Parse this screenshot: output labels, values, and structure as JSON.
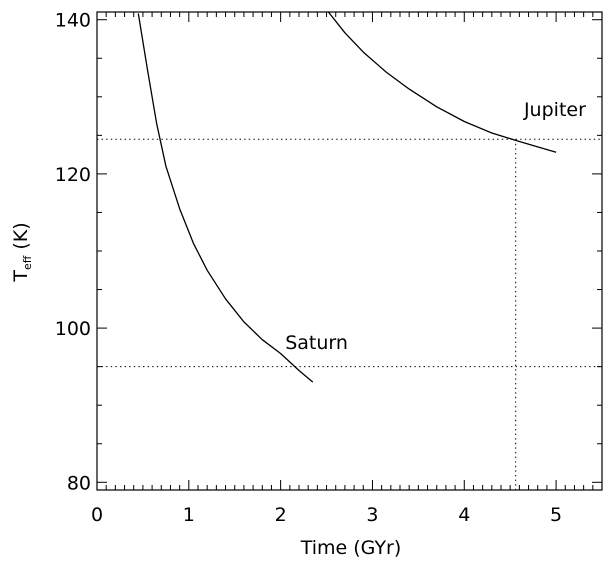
{
  "chart_data": {
    "type": "line",
    "xlabel": "Time (GYr)",
    "ylabel": {
      "main": "T",
      "subscript": "eff",
      "suffix": " (K)"
    },
    "xlim": [
      0,
      5.5
    ],
    "ylim": [
      79,
      141
    ],
    "xticks": [
      0,
      1,
      2,
      3,
      4,
      5
    ],
    "xtick_labels": [
      "0",
      "1",
      "2",
      "3",
      "4",
      "5"
    ],
    "yticks": [
      80,
      100,
      120,
      140
    ],
    "ytick_labels": [
      "80",
      "100",
      "120",
      "140"
    ],
    "grid": false,
    "series": [
      {
        "name": "Saturn",
        "x": [
          0.45,
          0.55,
          0.65,
          0.75,
          0.9,
          1.05,
          1.2,
          1.4,
          1.6,
          1.8,
          2.0,
          2.2,
          2.35
        ],
        "y": [
          140.8,
          133.5,
          126.5,
          121.0,
          115.5,
          111.0,
          107.5,
          103.8,
          100.8,
          98.5,
          96.7,
          94.5,
          93.0
        ]
      },
      {
        "name": "Jupiter",
        "x": [
          2.52,
          2.7,
          2.9,
          3.15,
          3.4,
          3.7,
          4.0,
          4.3,
          4.6,
          4.8,
          5.0
        ],
        "y": [
          141.0,
          138.3,
          135.8,
          133.2,
          131.0,
          128.7,
          126.8,
          125.3,
          124.2,
          123.5,
          122.8
        ]
      }
    ],
    "reference_lines": [
      {
        "orientation": "horizontal",
        "value": 124.5,
        "style": "dotted"
      },
      {
        "orientation": "horizontal",
        "value": 95.0,
        "style": "dotted"
      },
      {
        "orientation": "vertical",
        "value": 4.56,
        "y_top": 124.5,
        "style": "dotted"
      }
    ],
    "annotations": [
      {
        "text": "Jupiter",
        "x": 4.65,
        "y": 127.5
      },
      {
        "text": "Saturn",
        "x": 2.05,
        "y": 97.3
      }
    ]
  }
}
